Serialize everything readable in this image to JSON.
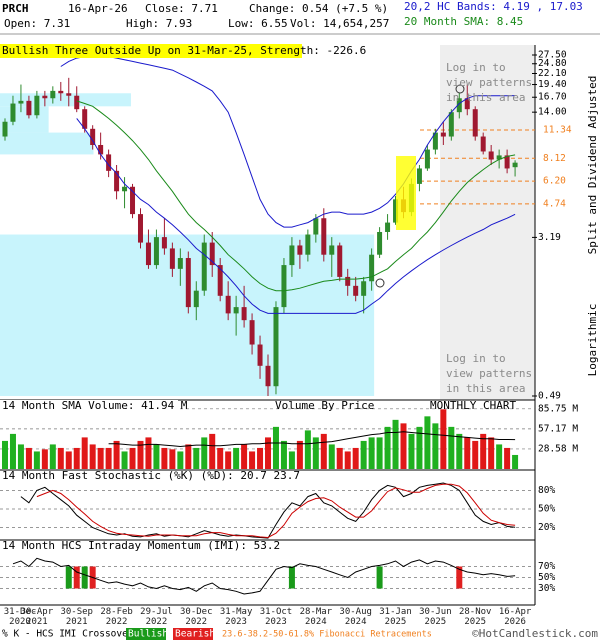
{
  "header": {
    "symbol": "PRCH",
    "date": "16-Apr-26",
    "close": "Close: 7.71",
    "change": "Change: 0.54 (+7.5 %)",
    "hc_bands": "20,2 HC Bands: 4.19 , 17.03",
    "open": "Open: 7.31",
    "high": "High: 7.93",
    "low": "Low: 6.55",
    "volume": "Vol: 14,654,257",
    "sma": "20 Month SMA: 8.45",
    "pattern": "Bullish Three Outside Up on 31-Mar-25, Strength: -226.6"
  },
  "chart_data": [
    {
      "type": "candlestick",
      "categories": [
        "31-Dec 2020",
        null,
        null,
        null,
        "30-Apr 2021",
        null,
        null,
        null,
        null,
        "30-Sep 2021",
        null,
        null,
        null,
        null,
        "28-Feb 2022",
        null,
        null,
        null,
        null,
        "29-Jul 2022",
        null,
        null,
        null,
        null,
        "30-Dec 2022",
        null,
        null,
        null,
        null,
        "31-May 2023",
        null,
        null,
        null,
        null,
        "31-Oct 2023",
        null,
        null,
        null,
        null,
        "28-Mar 2024",
        null,
        null,
        null,
        null,
        "30-Aug 2024",
        null,
        null,
        null,
        null,
        "31-Jan 2025",
        null,
        null,
        null,
        null,
        "30-Jun 2025",
        null,
        null,
        null,
        null,
        "28-Nov 2025",
        null,
        null,
        null,
        null,
        "16-Apr 2026"
      ],
      "open": [
        10.5,
        12.5,
        15.5,
        16,
        13.5,
        17,
        16.5,
        18,
        17.5,
        17,
        14.5,
        11.5,
        9.5,
        8.5,
        7,
        5.5,
        5.8,
        4.2,
        3,
        2.3,
        3.2,
        2.8,
        2.2,
        2.5,
        1.4,
        1.7,
        3,
        2.3,
        1.6,
        1.3,
        1.4,
        1.2,
        0.9,
        0.7,
        0.55,
        1.4,
        2.3,
        2.9,
        2.6,
        3.3,
        4.0,
        2.6,
        2.9,
        2.0,
        1.8,
        1.6,
        1.9,
        2.6,
        3.4,
        3.8,
        5.0,
        4.3,
        6.0,
        7.2,
        9.0,
        11.0,
        10.5,
        14.0,
        16.5,
        14.5,
        10.5,
        8.8,
        8.0,
        8.4,
        7.31
      ],
      "high": [
        13,
        17,
        19.4,
        17,
        18,
        18,
        19,
        20,
        21,
        19,
        15,
        12,
        11,
        9,
        7.5,
        6.5,
        6,
        4.5,
        3.5,
        3.5,
        4,
        3,
        2.8,
        2.7,
        1.9,
        3.3,
        3.4,
        2.5,
        1.9,
        1.6,
        1.8,
        1.3,
        1.0,
        0.8,
        1.5,
        2.5,
        3.2,
        3.1,
        3.5,
        4.2,
        4.5,
        3.2,
        3.0,
        2.2,
        2.0,
        2.0,
        2.8,
        3.6,
        4.2,
        5.2,
        5.8,
        6.4,
        7.5,
        9.5,
        11.5,
        12.5,
        14.5,
        17.5,
        19.4,
        15,
        11,
        9.5,
        9.0,
        9.0,
        7.93
      ],
      "low": [
        10,
        12,
        14,
        13,
        13,
        15,
        15.5,
        16,
        15,
        14,
        11,
        9,
        8,
        6.5,
        5,
        4.5,
        4,
        2.8,
        2.2,
        2.2,
        2.6,
        2,
        1.8,
        1.3,
        1.2,
        1.6,
        2,
        1.5,
        1.2,
        1.0,
        1.1,
        0.8,
        0.6,
        0.49,
        0.5,
        1.3,
        2.0,
        2.2,
        2.4,
        3.0,
        2.4,
        2.0,
        1.9,
        1.6,
        1.5,
        1.3,
        1.7,
        2.5,
        3.1,
        3.7,
        4.0,
        4.1,
        5.5,
        7.0,
        8.5,
        9.5,
        10.0,
        13.0,
        13.5,
        10,
        8.5,
        7.5,
        7.2,
        6.8,
        6.55
      ],
      "close": [
        12.5,
        15.5,
        16,
        13.5,
        17,
        16.5,
        18,
        17.5,
        17,
        14.5,
        11.5,
        9.5,
        8.5,
        7,
        5.5,
        5.8,
        4.2,
        3,
        2.3,
        3.2,
        2.8,
        2.2,
        2.5,
        1.4,
        1.7,
        3,
        2.3,
        1.6,
        1.3,
        1.4,
        1.2,
        0.9,
        0.7,
        0.55,
        1.4,
        2.3,
        2.9,
        2.6,
        3.3,
        4.0,
        2.6,
        2.9,
        2.0,
        1.8,
        1.6,
        1.9,
        2.6,
        3.4,
        3.8,
        5.0,
        4.3,
        6.0,
        7.2,
        9.0,
        11.0,
        10.5,
        14.0,
        16.5,
        14.5,
        10.5,
        8.8,
        8.0,
        8.4,
        7.2,
        7.71
      ],
      "up_color": "#2e8b2e",
      "down_color": "#a01830",
      "lines": [
        {
          "color": "#1a1acc",
          "values": [
            null,
            null,
            null,
            null,
            null,
            null,
            null,
            24,
            25.5,
            26.5,
            27,
            27,
            27,
            27,
            26.5,
            26,
            25.5,
            25,
            24.5,
            24,
            23.5,
            23,
            22,
            21,
            20,
            19,
            18,
            16,
            14,
            11,
            8.5,
            6.5,
            5,
            4.2,
            3.8,
            3.6,
            3.6,
            3.7,
            3.8,
            4,
            4.2,
            4.3,
            4.3,
            4.2,
            4.2,
            4.2,
            4.3,
            4.5,
            4.8,
            5.3,
            6,
            7,
            8,
            9.5,
            11,
            12.5,
            14,
            15.5,
            16.5,
            17,
            17,
            17,
            17,
            17,
            17.03
          ]
        },
        {
          "color": "#1a1acc",
          "values": [
            null,
            null,
            null,
            null,
            null,
            null,
            null,
            null,
            null,
            13,
            11.5,
            10,
            8.5,
            7.5,
            6.8,
            6,
            5.5,
            5,
            4.7,
            4.3,
            4,
            3.7,
            3.4,
            3.1,
            2.8,
            2.6,
            2.4,
            2.2,
            2,
            1.8,
            1.6,
            1.45,
            1.35,
            1.3,
            1.3,
            1.3,
            1.3,
            1.3,
            1.3,
            1.3,
            1.3,
            1.3,
            1.3,
            1.3,
            1.3,
            1.35,
            1.45,
            1.55,
            1.7,
            1.85,
            2,
            2.15,
            2.3,
            2.45,
            2.6,
            2.75,
            2.9,
            3.05,
            3.2,
            3.35,
            3.5,
            3.7,
            3.85,
            4.0,
            4.19
          ]
        },
        {
          "color": "#1a8a1a",
          "values": [
            null,
            null,
            null,
            null,
            null,
            null,
            null,
            null,
            null,
            16,
            15.5,
            15,
            14,
            13,
            12,
            11,
            10,
            9,
            8,
            7,
            6.2,
            5.5,
            4.8,
            4.2,
            3.8,
            3.5,
            3.2,
            2.9,
            2.6,
            2.4,
            2.2,
            2,
            1.85,
            1.75,
            1.7,
            1.7,
            1.72,
            1.75,
            1.8,
            1.85,
            1.9,
            1.92,
            1.95,
            1.95,
            1.95,
            1.97,
            2,
            2.1,
            2.2,
            2.4,
            2.6,
            2.8,
            3.1,
            3.4,
            3.8,
            4.3,
            4.9,
            5.5,
            6.1,
            6.6,
            7.1,
            7.6,
            8,
            8.3,
            8.45
          ]
        }
      ],
      "ylim": [
        0.49,
        27.5
      ],
      "log_scale": true,
      "yticks": [
        {
          "value": 27.5,
          "label": "27.50"
        },
        {
          "value": 24.8,
          "label": "24.80"
        },
        {
          "value": 22.1,
          "label": "22.10"
        },
        {
          "value": 19.4,
          "label": "19.40"
        },
        {
          "value": 16.7,
          "label": "16.70"
        },
        {
          "value": 14,
          "label": "14.00"
        },
        3.19,
        0.49
      ],
      "fib_levels": [
        11.34,
        8.12,
        {
          "value": 6.2,
          "label": "6.20"
        },
        4.74
      ],
      "fib_color": "#f08020",
      "volume_by_price": {
        "bins": [
          0.49,
          3.3,
          8.5,
          11.0,
          15.0,
          17.5
        ],
        "values": [
          100,
          0,
          25,
          13,
          35
        ],
        "xlim": [
          0,
          143
        ],
        "color": "#c8f4fc"
      },
      "notes": [
        "Log in to view patterns in this area",
        "Log in to view patterns in this area"
      ],
      "side_labels": [
        "Split and Dividend Adjusted",
        "Logarithmic"
      ]
    },
    {
      "type": "bar",
      "title": "14 Month SMA Volume: 41.94 M",
      "annotations": [
        "Volume By Price",
        "MONTHLY CHART"
      ],
      "values": [
        40,
        50,
        35,
        30,
        25,
        28,
        35,
        30,
        25,
        30,
        45,
        35,
        30,
        30,
        40,
        25,
        30,
        40,
        45,
        35,
        30,
        28,
        25,
        35,
        30,
        45,
        50,
        30,
        25,
        30,
        35,
        25,
        30,
        45,
        60,
        40,
        25,
        40,
        55,
        45,
        50,
        35,
        30,
        25,
        30,
        40,
        45,
        45,
        60,
        70,
        65,
        50,
        60,
        75,
        65,
        85,
        60,
        50,
        45,
        40,
        50,
        45,
        35,
        30,
        20
      ],
      "up_color": "#20b020",
      "down_color": "#e01818",
      "sma": [
        null,
        null,
        null,
        null,
        null,
        null,
        null,
        null,
        null,
        null,
        null,
        null,
        null,
        36,
        36,
        35,
        34,
        34,
        35,
        35,
        34,
        33,
        32,
        33,
        34,
        34,
        33,
        33,
        34,
        35,
        35,
        36,
        36,
        37,
        37,
        37,
        36,
        36,
        36,
        37,
        38,
        39,
        41,
        43,
        45,
        47,
        49,
        50,
        52,
        52,
        53,
        52,
        51,
        50,
        49,
        48,
        47,
        46,
        45,
        44,
        43,
        43,
        42,
        42,
        41.94
      ],
      "ylim": [
        0,
        94
      ],
      "yticks": [
        {
          "value": 85.75,
          "label": "85.75 M"
        },
        {
          "value": 57.17,
          "label": "57.17 M"
        },
        {
          "value": 28.58,
          "label": "28.58 M"
        }
      ]
    },
    {
      "type": "line",
      "title": "14 Month Fast Stochastic (%K) (%D): 20.7 23.7",
      "series": [
        {
          "color": "#000000",
          "values": [
            null,
            null,
            70,
            60,
            80,
            85,
            75,
            65,
            55,
            40,
            30,
            20,
            15,
            10,
            8,
            10,
            6,
            5,
            8,
            10,
            6,
            8,
            7,
            5,
            10,
            15,
            12,
            8,
            6,
            8,
            7,
            5,
            4,
            3,
            25,
            45,
            60,
            55,
            70,
            75,
            60,
            55,
            45,
            35,
            30,
            45,
            65,
            80,
            88,
            85,
            70,
            75,
            85,
            88,
            90,
            92,
            88,
            80,
            60,
            40,
            30,
            25,
            28,
            22,
            20.7
          ]
        },
        {
          "color": "#cc0000",
          "values": [
            null,
            null,
            null,
            null,
            70,
            75,
            80,
            75,
            65,
            53,
            42,
            30,
            22,
            15,
            11,
            9,
            8,
            7,
            6,
            8,
            8,
            8,
            7,
            7,
            7,
            10,
            12,
            12,
            9,
            7,
            7,
            7,
            5,
            4,
            11,
            24,
            43,
            53,
            62,
            67,
            68,
            63,
            53,
            45,
            37,
            37,
            47,
            63,
            78,
            84,
            81,
            77,
            77,
            83,
            88,
            90,
            90,
            87,
            76,
            60,
            43,
            32,
            28,
            25,
            23.7
          ]
        }
      ],
      "ylim": [
        0,
        100
      ],
      "yticks": [
        {
          "value": 80,
          "label": "80%"
        },
        {
          "value": 50,
          "label": "50%"
        },
        {
          "value": 20,
          "label": "20%"
        }
      ]
    },
    {
      "type": "line",
      "title": "14 Month HCS Intraday Momentum (IMI): 53.2",
      "color": "#000000",
      "values": [
        null,
        75,
        80,
        70,
        85,
        80,
        78,
        70,
        72,
        60,
        55,
        50,
        45,
        40,
        42,
        38,
        35,
        40,
        33,
        30,
        35,
        30,
        28,
        32,
        25,
        35,
        40,
        30,
        28,
        25,
        20,
        22,
        25,
        45,
        65,
        70,
        68,
        75,
        72,
        70,
        65,
        60,
        55,
        50,
        60,
        65,
        70,
        72,
        75,
        80,
        70,
        78,
        82,
        75,
        80,
        78,
        72,
        65,
        60,
        58,
        55,
        57,
        55,
        52,
        53.2
      ],
      "signals": [
        null,
        null,
        null,
        null,
        null,
        null,
        null,
        null,
        1,
        -1,
        1,
        -1,
        null,
        null,
        null,
        null,
        null,
        null,
        null,
        null,
        null,
        null,
        null,
        null,
        null,
        null,
        null,
        null,
        null,
        null,
        null,
        null,
        null,
        null,
        null,
        null,
        1,
        null,
        null,
        null,
        null,
        null,
        null,
        null,
        null,
        null,
        null,
        1,
        null,
        null,
        null,
        null,
        null,
        null,
        null,
        null,
        null,
        -1,
        null,
        null,
        null,
        null,
        null,
        null,
        null
      ],
      "bullish_color": "#1a9a1a",
      "bearish_color": "#e02020",
      "ylim": [
        0,
        100
      ],
      "yticks": [
        {
          "value": 70,
          "label": "70%"
        },
        {
          "value": 50,
          "label": "50%"
        },
        {
          "value": 30,
          "label": "30%"
        }
      ]
    }
  ],
  "footer": {
    "crossover": "% K - HCS IMI Crossover,",
    "bullish": "Bullish",
    "bearish": "Bearish",
    "fib": "23.6-38.2-50-61.8% Fibonacci Retracements",
    "credit": "©HotCandlestick.com"
  }
}
